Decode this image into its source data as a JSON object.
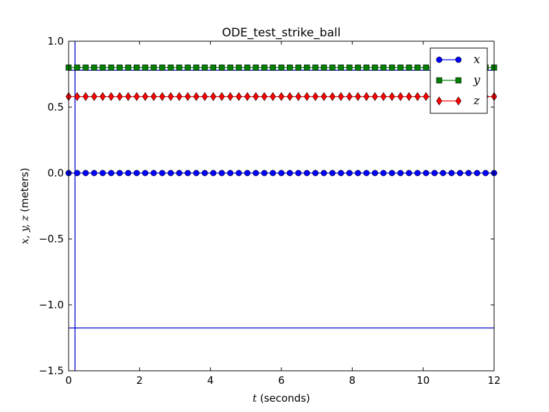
{
  "chart_data": {
    "type": "line",
    "title": "ODE_test_strike_ball",
    "xlabel_var": "t",
    "xlabel_unit": " (seconds)",
    "ylabel_vars": "x, y, z",
    "ylabel_unit": " (meters)",
    "xlim": [
      0,
      12
    ],
    "ylim": [
      -1.5,
      1.0
    ],
    "xticks": [
      0,
      2,
      4,
      6,
      8,
      10,
      12
    ],
    "xtick_labels": [
      "0",
      "2",
      "4",
      "6",
      "8",
      "10",
      "12"
    ],
    "yticks": [
      -1.5,
      -1.0,
      -0.5,
      0.0,
      0.5,
      1.0
    ],
    "ytick_labels": [
      "−1.5",
      "−1.0",
      "−0.5",
      "0.0",
      "0.5",
      "1.0"
    ],
    "grid": false,
    "legend_position": "top-right",
    "x_start": 0,
    "x_step": 0.24,
    "x_count": 51,
    "series": [
      {
        "name": "x",
        "value": 0.0,
        "color": "#0000ff",
        "marker": "circle"
      },
      {
        "name": "y",
        "value": 0.8,
        "color": "#008000",
        "marker": "square"
      },
      {
        "name": "z",
        "value": 0.58,
        "color": "#ff0000",
        "marker": "diamond"
      }
    ],
    "reference_lines": {
      "vertical_x": 0.18,
      "horizontal_y": [
        0.78,
        -1.175
      ],
      "color": "#0000cc"
    }
  }
}
